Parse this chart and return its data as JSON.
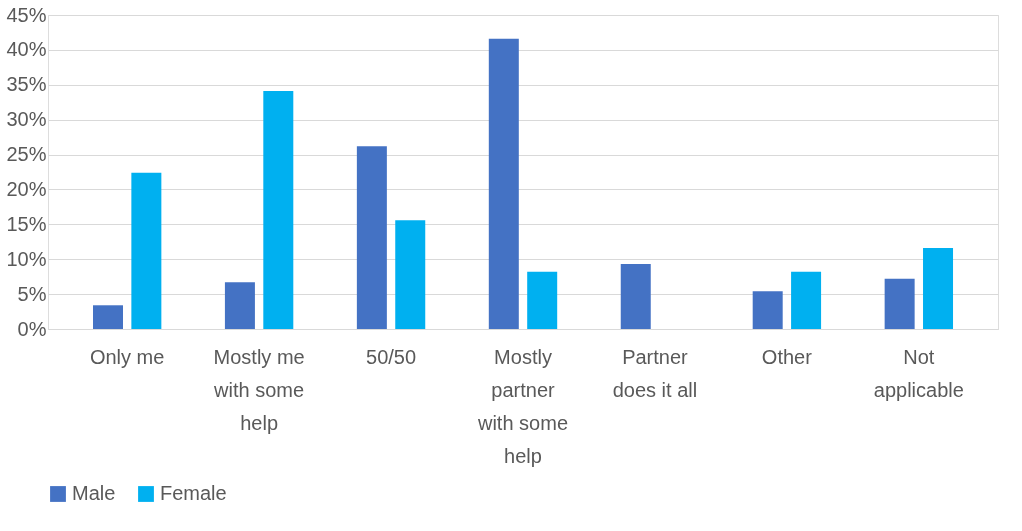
{
  "chart_data": {
    "type": "bar",
    "categories": [
      "Only me",
      "Mostly me with some help",
      "50/50",
      "Mostly partner with some help",
      "Partner does it all",
      "Other",
      "Not applicable"
    ],
    "series": [
      {
        "name": "Male",
        "color": "#4472c4",
        "values": [
          3.4,
          6.7,
          26.2,
          41.6,
          9.3,
          5.4,
          7.2
        ]
      },
      {
        "name": "Female",
        "color": "#00b0f0",
        "values": [
          22.4,
          34.1,
          15.6,
          8.2,
          null,
          8.2,
          11.6
        ]
      }
    ],
    "ylim": [
      0,
      45
    ],
    "yticks": [
      {
        "value": 0,
        "label": "0%"
      },
      {
        "value": 5,
        "label": "5%"
      },
      {
        "value": 10,
        "label": "10%"
      },
      {
        "value": 15,
        "label": "15%"
      },
      {
        "value": 20,
        "label": "20%"
      },
      {
        "value": 25,
        "label": "25%"
      },
      {
        "value": 30,
        "label": "30%"
      },
      {
        "value": 35,
        "label": "35%"
      },
      {
        "value": 40,
        "label": "40%"
      },
      {
        "value": 45,
        "label": "45%"
      }
    ],
    "grid": "y",
    "legend": "bottom"
  }
}
